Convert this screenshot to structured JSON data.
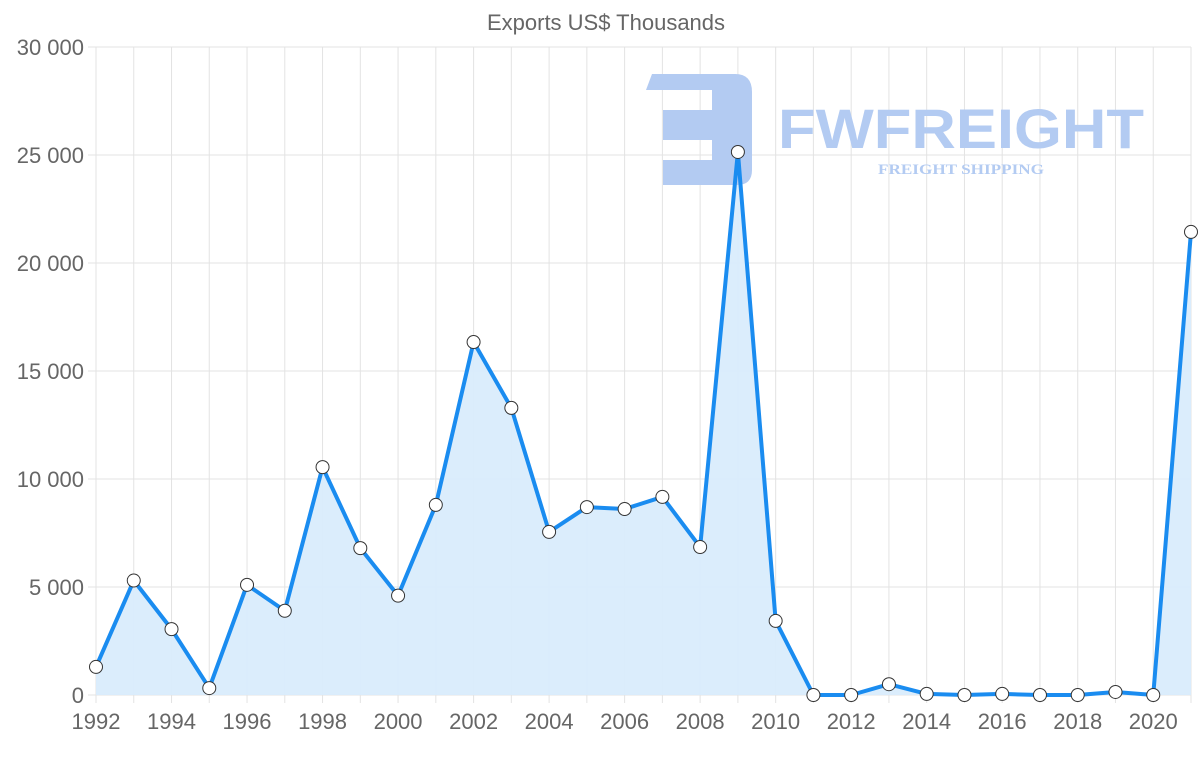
{
  "chart_data": {
    "type": "area",
    "title": "Exports US$ Thousands",
    "xlabel": "",
    "ylabel": "",
    "ylim": [
      0,
      30000
    ],
    "yticks": [
      0,
      5000,
      10000,
      15000,
      20000,
      25000,
      30000
    ],
    "ytick_labels": [
      "0",
      "5 000",
      "10 000",
      "15 000",
      "20 000",
      "25 000",
      "30 000"
    ],
    "xtick_labels": [
      "1992",
      "1994",
      "1996",
      "1998",
      "2000",
      "2002",
      "2004",
      "2006",
      "2008",
      "2010",
      "2012",
      "2014",
      "2016",
      "2018",
      "2020"
    ],
    "grid": true,
    "x": [
      1992,
      1993,
      1994,
      1995,
      1996,
      1997,
      1998,
      1999,
      2000,
      2001,
      2002,
      2003,
      2004,
      2005,
      2006,
      2007,
      2008,
      2009,
      2010,
      2011,
      2012,
      2013,
      2014,
      2015,
      2016,
      2017,
      2018,
      2019,
      2020,
      2021
    ],
    "series": [
      {
        "name": "Exports US$ Thousands",
        "values": [
          1300,
          5300,
          3050,
          320,
          5100,
          3900,
          10550,
          6800,
          4600,
          8800,
          16340,
          13290,
          7550,
          8700,
          8610,
          9170,
          6850,
          25140,
          3430,
          0,
          0,
          500,
          50,
          0,
          50,
          0,
          0,
          140,
          0,
          21440
        ],
        "color": "#1a8cf0",
        "fill": "#d9ecfc"
      }
    ]
  },
  "watermark": {
    "brand": "FWFREIGHT",
    "tagline": "FREIGHT SHIPPING",
    "color": "#b3cbf2"
  }
}
